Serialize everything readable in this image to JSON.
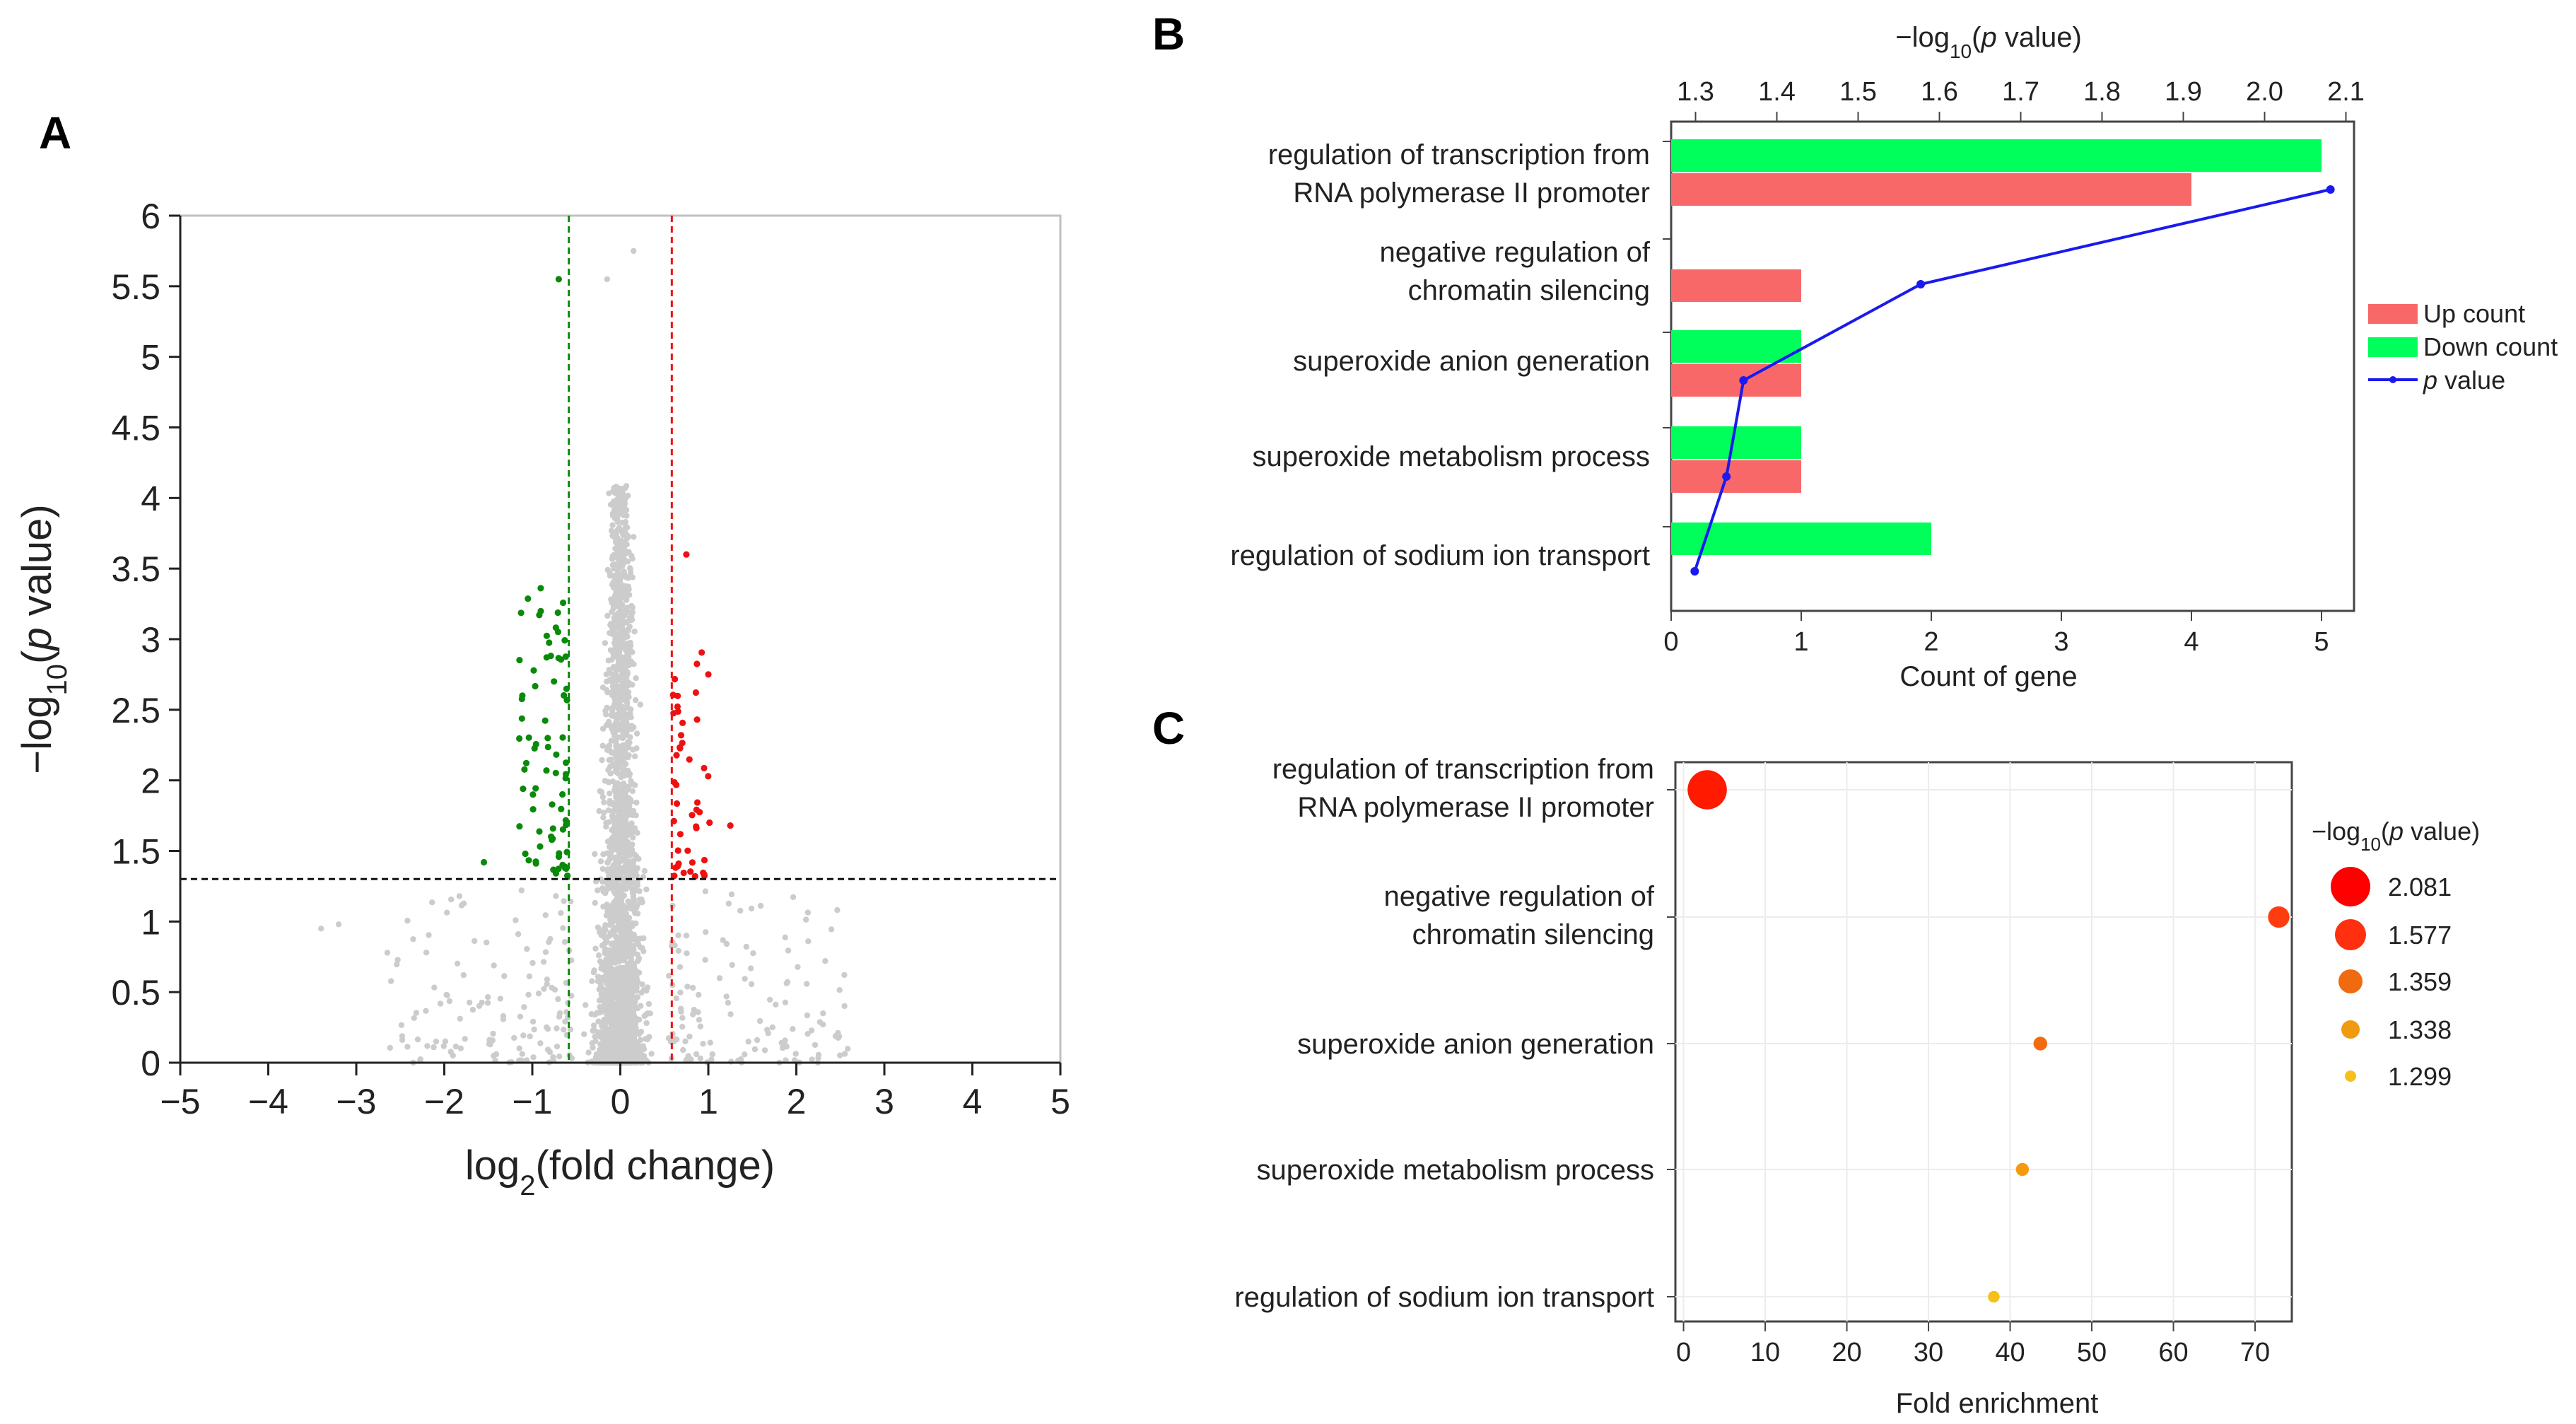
{
  "panels": {
    "a": {
      "letter": "A"
    },
    "b": {
      "letter": "B"
    },
    "c": {
      "letter": "C"
    }
  },
  "chart_data": [
    {
      "id": "A",
      "type": "scatter",
      "title": "",
      "xlabel_main": "log",
      "xlabel_sub": "2",
      "xlabel_tail": "(fold change)",
      "ylabel_main": "−log",
      "ylabel_sub": "10",
      "ylabel_open": "(",
      "ylabel_italic": "p",
      "ylabel_tail": " value)",
      "xlim": [
        -5,
        5
      ],
      "ylim": [
        0,
        6
      ],
      "xticks": [
        "−5",
        "−4",
        "−3",
        "−2",
        "−1",
        "0",
        "1",
        "2",
        "3",
        "4",
        "5"
      ],
      "yticks": [
        "0",
        "0.5",
        "1",
        "1.5",
        "2",
        "2.5",
        "3",
        "3.5",
        "4",
        "4.5",
        "5",
        "5.5",
        "6"
      ],
      "thresholds": {
        "fold_change_low": -0.585,
        "fold_change_high": 0.585,
        "p_value": 1.301
      },
      "colors": {
        "down": "#0a8a0a",
        "up": "#ee1111",
        "ns": "#cccccc",
        "fc_line_down": "#0a8a0a",
        "fc_line_up": "#ee1111",
        "p_line": "#111111"
      },
      "notable_points": [
        {
          "x": -0.7,
          "y": 5.55,
          "group": "down"
        },
        {
          "x": -0.15,
          "y": 5.55,
          "group": "ns"
        },
        {
          "x": 0.15,
          "y": 5.75,
          "group": "ns"
        },
        {
          "x": -1.55,
          "y": 1.42,
          "group": "down"
        },
        {
          "x": 1.25,
          "y": 1.68,
          "group": "up"
        },
        {
          "x": -3.4,
          "y": 0.95,
          "group": "ns"
        },
        {
          "x": -3.2,
          "y": 0.98,
          "group": "ns"
        },
        {
          "x": 0.75,
          "y": 3.6,
          "group": "up"
        },
        {
          "x": 1.0,
          "y": 2.75,
          "group": "up"
        }
      ]
    },
    {
      "id": "B",
      "type": "bar",
      "categories": [
        "regulation of transcription from|RNA polymerase II promoter",
        "negative regulation of|chromatin silencing",
        "superoxide anion generation",
        "superoxide metabolism process",
        "regulation of sodium ion transport"
      ],
      "series": [
        {
          "name": "Up count",
          "values": [
            4,
            1,
            1,
            1,
            0
          ],
          "color": "#f86868"
        },
        {
          "name": "Down count",
          "values": [
            5,
            0,
            1,
            1,
            2
          ],
          "color": "#00ff5a"
        }
      ],
      "line_series": {
        "name_italic": "p",
        "name_tail": " value",
        "values": [
          2.081,
          1.577,
          1.359,
          1.338,
          1.299
        ],
        "color": "#1a1aee"
      },
      "xlabel": "Count of gene",
      "xlim": [
        0,
        5.25
      ],
      "xticks": [
        "0",
        "1",
        "2",
        "3",
        "4",
        "5"
      ],
      "top_axis": {
        "label_main": "−log",
        "label_sub": "10",
        "label_open": "(",
        "label_italic": "p",
        "label_tail": " value)",
        "range": [
          1.27,
          2.11
        ],
        "ticks": [
          "1.3",
          "1.4",
          "1.5",
          "1.6",
          "1.7",
          "1.8",
          "1.9",
          "2.0",
          "2.1"
        ]
      },
      "legend": {
        "up": "Up count",
        "down": "Down count",
        "line_italic": "p",
        "line_tail": " value"
      }
    },
    {
      "id": "C",
      "type": "scatter",
      "categories": [
        "regulation of transcription from|RNA polymerase II promoter",
        "negative regulation of|chromatin silencing",
        "superoxide anion generation",
        "superoxide metabolism process",
        "regulation of sodium ion transport"
      ],
      "fold_enrichment": [
        2.9,
        72.9,
        43.7,
        41.5,
        38.0
      ],
      "neg_log10_p": [
        2.081,
        1.577,
        1.359,
        1.338,
        1.299
      ],
      "point_colors": [
        "#ff1a00",
        "#ff3c10",
        "#f26b10",
        "#f59a10",
        "#f5c01a"
      ],
      "xlabel": "Fold enrichment",
      "xlim": [
        -1,
        74.5
      ],
      "xticks": [
        "0",
        "10",
        "20",
        "30",
        "40",
        "50",
        "60",
        "70"
      ],
      "legend": {
        "title_main": "−log",
        "title_sub": "10",
        "title_open": "(",
        "title_italic": "p",
        "title_tail": " value)",
        "entries": [
          "2.081",
          "1.577",
          "1.359",
          "1.338",
          "1.299"
        ],
        "colors": [
          "#ff0000",
          "#ff3010",
          "#f06a10",
          "#f09a10",
          "#f5c01a"
        ]
      }
    }
  ]
}
